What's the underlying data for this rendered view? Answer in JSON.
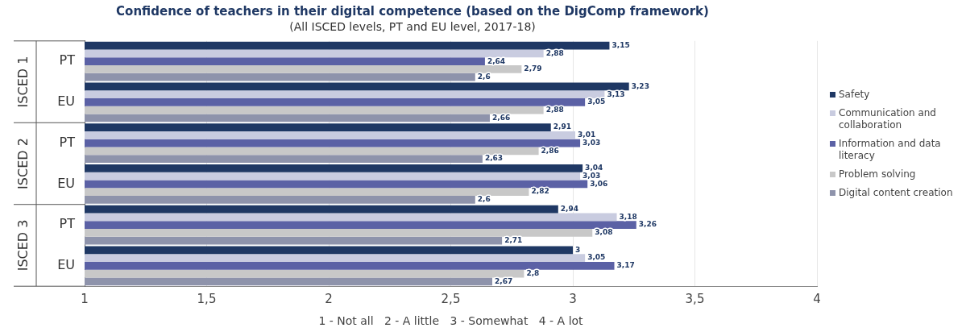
{
  "chart_data": {
    "type": "bar",
    "orientation": "horizontal",
    "title": "Confidence of teachers in their digital competence (based on the DigComp framework)",
    "subtitle": "(All ISCED levels, PT and EU level, 2017-18)",
    "xlabel": "1 - Not all   2 - A little   3 - Somewhat   4 - A lot",
    "categories": [
      "PT",
      "EU",
      "PT",
      "EU",
      "PT",
      "EU"
    ],
    "annotations": [
      "ISCED 1",
      "ISCED 2",
      "ISCED 3"
    ],
    "series": [
      {
        "name": "Safety",
        "color": "#1f3864",
        "values": [
          3.15,
          3.23,
          2.91,
          3.04,
          2.94,
          3
        ],
        "value_labels": [
          "3,15",
          "3,23",
          "2,91",
          "3,04",
          "2,94",
          "3"
        ]
      },
      {
        "name": "Communication and collaboration",
        "color": "#c9cce0",
        "values": [
          2.88,
          3.13,
          3.01,
          3.03,
          3.18,
          3.05
        ],
        "value_labels": [
          "2,88",
          "3,13",
          "3,01",
          "3,03",
          "3,18",
          "3,05"
        ]
      },
      {
        "name": "Information and data literacy",
        "color": "#5b61a5",
        "values": [
          2.64,
          3.05,
          3.03,
          3.06,
          3.26,
          3.17
        ],
        "value_labels": [
          "2,64",
          "3,05",
          "3,03",
          "3,06",
          "3,26",
          "3,17"
        ]
      },
      {
        "name": "Problem solving",
        "color": "#c8c8c8",
        "values": [
          2.79,
          2.88,
          2.86,
          2.82,
          3.08,
          2.8
        ],
        "value_labels": [
          "2,79",
          "2,88",
          "2,86",
          "2,82",
          "3,08",
          "2,8"
        ]
      },
      {
        "name": "Digital content creation",
        "color": "#8e93ab",
        "values": [
          2.6,
          2.66,
          2.63,
          2.6,
          2.71,
          2.67
        ],
        "value_labels": [
          "2,6",
          "2,66",
          "2,63",
          "2,6",
          "2,71",
          "2,67"
        ]
      }
    ],
    "xlim": [
      1,
      4
    ],
    "xticks": [
      1,
      {
        "value": 1.5,
        "label": "1,5"
      },
      2,
      {
        "value": 2.5,
        "label": "2,5"
      },
      3,
      {
        "value": 3.5,
        "label": "3,5"
      },
      4
    ],
    "grid": "x",
    "legend": "right"
  }
}
